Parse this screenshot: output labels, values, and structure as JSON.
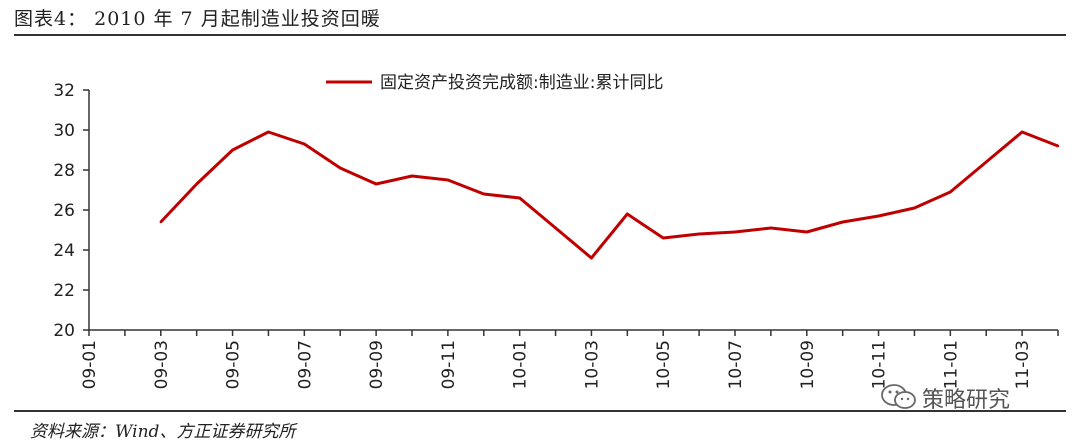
{
  "figure": {
    "title": "图表4：  2010 年 7 月起制造业投资回暖",
    "source": "资料来源：Wind、方正证券研究所",
    "watermark": "策略研究"
  },
  "chart_data": {
    "type": "line",
    "title": "",
    "xlabel": "",
    "ylabel": "",
    "ylim": [
      20,
      32
    ],
    "yticks": [
      20,
      22,
      24,
      26,
      28,
      30,
      32
    ],
    "grid": false,
    "legend_position": "top-center",
    "x": [
      "09-01",
      "09-02",
      "09-03",
      "09-04",
      "09-05",
      "09-06",
      "09-07",
      "09-08",
      "09-09",
      "09-10",
      "09-11",
      "09-12",
      "10-01",
      "10-02",
      "10-03",
      "10-04",
      "10-05",
      "10-06",
      "10-07",
      "10-08",
      "10-09",
      "10-10",
      "10-11",
      "10-12",
      "11-01",
      "11-02",
      "11-03",
      "11-04"
    ],
    "x_tick_labels": [
      "09-01",
      "09-03",
      "09-05",
      "09-07",
      "09-09",
      "09-11",
      "10-01",
      "10-03",
      "10-05",
      "10-07",
      "10-09",
      "10-11",
      "11-01",
      "11-03"
    ],
    "series": [
      {
        "name": "固定资产投资完成额:制造业:累计同比",
        "color": "#c00000",
        "values": [
          null,
          null,
          25.4,
          27.3,
          29.0,
          29.9,
          29.3,
          28.1,
          27.3,
          27.7,
          27.5,
          26.8,
          26.6,
          25.1,
          23.6,
          25.8,
          24.6,
          24.8,
          24.9,
          25.1,
          24.9,
          25.4,
          25.7,
          26.1,
          26.9,
          28.4,
          29.9,
          29.2
        ]
      }
    ]
  }
}
